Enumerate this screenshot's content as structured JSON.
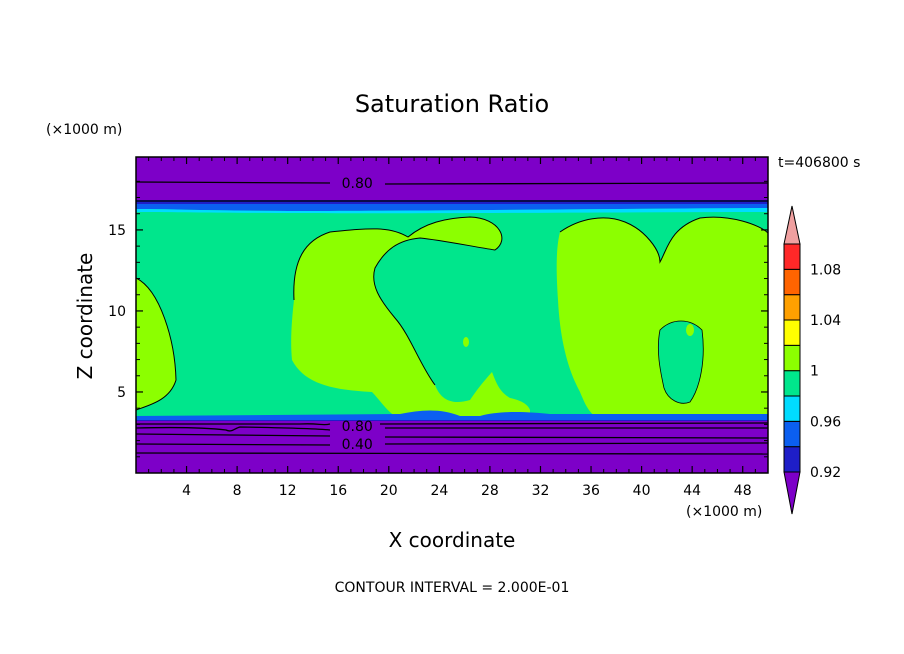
{
  "chart_data": {
    "type": "heatmap",
    "title": "Saturation Ratio",
    "xlabel": "X coordinate",
    "ylabel": "Z coordinate",
    "x_unit": "(×1000 m)",
    "y_unit": "(×1000 m)",
    "time_label": "t=406800 s",
    "contour_interval_text": "CONTOUR INTERVAL = 2.000E-01",
    "xlim": [
      0,
      50
    ],
    "ylim": [
      0,
      19.5
    ],
    "x_ticks": [
      4,
      8,
      12,
      16,
      20,
      24,
      28,
      32,
      36,
      40,
      44,
      48
    ],
    "y_ticks": [
      5,
      10,
      15
    ],
    "contour_labels": [
      {
        "text": "0.80",
        "x": 17.5,
        "z": 17.9
      },
      {
        "text": "0.80",
        "x": 17.5,
        "z": 2.9
      },
      {
        "text": "0.40",
        "x": 17.5,
        "z": 1.8
      }
    ],
    "colorbar": {
      "levels": [
        0.92,
        0.94,
        0.96,
        0.98,
        1.0,
        1.02,
        1.04,
        1.06,
        1.08,
        1.1
      ],
      "tick_labels": [
        "1.08",
        "1.04",
        "1",
        "0.96",
        "0.92"
      ],
      "tick_values": [
        1.08,
        1.04,
        1.0,
        0.96,
        0.92
      ],
      "colors": [
        "#7d00c8",
        "#1e1ec8",
        "#0b5ff0",
        "#00dcff",
        "#00e68c",
        "#8cff00",
        "#ffff00",
        "#ffa000",
        "#ff6400",
        "#ff2828",
        "#f0a0a0"
      ]
    },
    "regions": {
      "dry_top_color": "#7d00c8",
      "dry_bottom_color": "#7d00c8",
      "mid_color": "#00e68c",
      "moist_color": "#8cff00",
      "transition_colors": [
        "#1e1ec8",
        "#0b5ff0",
        "#00dcff"
      ]
    }
  }
}
